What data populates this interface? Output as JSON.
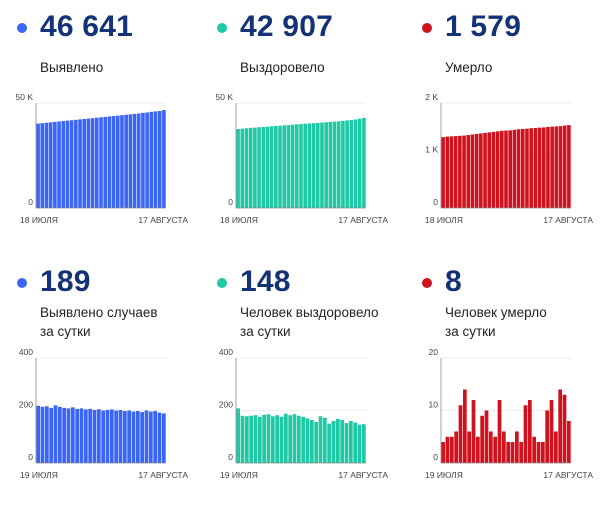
{
  "panels": [
    {
      "id": "p1",
      "color": "#3b66f5",
      "value": "46 641",
      "label": [
        "Выявлено"
      ],
      "chart": {
        "ylim": [
          0,
          50000
        ],
        "yticks": [
          {
            "v": 0,
            "t": "0"
          },
          {
            "v": 50000,
            "t": "50 K"
          }
        ],
        "xlabels": [
          "18 ИЮЛЯ",
          "17 АВГУСТА"
        ]
      }
    },
    {
      "id": "p2",
      "color": "#20c9a6",
      "value": "42 907",
      "label": [
        "Выздоровело"
      ],
      "chart": {
        "ylim": [
          0,
          50000
        ],
        "yticks": [
          {
            "v": 0,
            "t": "0"
          },
          {
            "v": 50000,
            "t": "50 K"
          }
        ],
        "xlabels": [
          "18 ИЮЛЯ",
          "17 АВГУСТА"
        ]
      }
    },
    {
      "id": "p3",
      "color": "#d0121e",
      "value": "1 579",
      "label": [
        "Умерло"
      ],
      "chart": {
        "ylim": [
          0,
          2000
        ],
        "yticks": [
          {
            "v": 0,
            "t": "0"
          },
          {
            "v": 1000,
            "t": "1 K"
          },
          {
            "v": 2000,
            "t": "2 K"
          }
        ],
        "xlabels": [
          "18 ИЮЛЯ",
          "17 АВГУСТА"
        ]
      }
    },
    {
      "id": "p4",
      "color": "#3b66f5",
      "value": "189",
      "label": [
        "Выявлено случаев",
        "за сутки"
      ],
      "chart": {
        "ylim": [
          0,
          400
        ],
        "yticks": [
          {
            "v": 0,
            "t": "0"
          },
          {
            "v": 200,
            "t": "200"
          },
          {
            "v": 400,
            "t": "400"
          }
        ],
        "xlabels": [
          "19 ИЮЛЯ",
          "17 АВГУСТА"
        ]
      }
    },
    {
      "id": "p5",
      "color": "#20c9a6",
      "value": "148",
      "label": [
        "Человек выздоровело",
        "за сутки"
      ],
      "chart": {
        "ylim": [
          0,
          400
        ],
        "yticks": [
          {
            "v": 0,
            "t": "0"
          },
          {
            "v": 200,
            "t": "200"
          },
          {
            "v": 400,
            "t": "400"
          }
        ],
        "xlabels": [
          "19 ИЮЛЯ",
          "17 АВГУСТА"
        ]
      }
    },
    {
      "id": "p6",
      "color": "#d0121e",
      "value": "8",
      "label": [
        "Человек умерло",
        "за сутки"
      ],
      "chart": {
        "ylim": [
          0,
          20
        ],
        "yticks": [
          {
            "v": 0,
            "t": "0"
          },
          {
            "v": 10,
            "t": "10"
          },
          {
            "v": 20,
            "t": "20"
          }
        ],
        "xlabels": [
          "19 ИЮЛЯ",
          "17 АВГУСТА"
        ]
      }
    }
  ],
  "chart_data": [
    {
      "type": "bar",
      "title": "Выявлено",
      "x_start": "18 ИЮЛЯ",
      "x_end": "17 АВГУСТА",
      "ylim": [
        0,
        50000
      ],
      "values": [
        40200,
        40400,
        40600,
        40800,
        41000,
        41200,
        41400,
        41600,
        41800,
        42000,
        42200,
        42400,
        42600,
        42800,
        43000,
        43200,
        43400,
        43600,
        43800,
        44000,
        44200,
        44400,
        44600,
        44800,
        45000,
        45300,
        45500,
        45800,
        46000,
        46200,
        46641
      ]
    },
    {
      "type": "bar",
      "title": "Выздоровело",
      "x_start": "18 ИЮЛЯ",
      "x_end": "17 АВГУСТА",
      "ylim": [
        0,
        50000
      ],
      "values": [
        37600,
        37800,
        38000,
        38150,
        38300,
        38450,
        38600,
        38750,
        38900,
        39050,
        39200,
        39350,
        39500,
        39650,
        39800,
        39950,
        40100,
        40250,
        40400,
        40550,
        40700,
        40850,
        41000,
        41150,
        41300,
        41500,
        41700,
        41900,
        42150,
        42550,
        42907
      ]
    },
    {
      "type": "bar",
      "title": "Умерло",
      "x_start": "18 ИЮЛЯ",
      "x_end": "17 АВГУСТА",
      "ylim": [
        0,
        2000
      ],
      "values": [
        1350,
        1360,
        1365,
        1370,
        1375,
        1380,
        1390,
        1400,
        1410,
        1420,
        1430,
        1440,
        1450,
        1460,
        1470,
        1475,
        1480,
        1490,
        1500,
        1505,
        1510,
        1520,
        1525,
        1530,
        1535,
        1545,
        1550,
        1555,
        1560,
        1571,
        1579
      ]
    },
    {
      "type": "bar",
      "title": "Выявлено случаев за сутки",
      "x_start": "19 ИЮЛЯ",
      "x_end": "17 АВГУСТА",
      "ylim": [
        0,
        400
      ],
      "values": [
        218,
        214,
        216,
        210,
        220,
        214,
        210,
        208,
        212,
        206,
        208,
        204,
        206,
        202,
        205,
        200,
        202,
        204,
        200,
        202,
        198,
        200,
        196,
        198,
        194,
        200,
        196,
        198,
        192,
        189
      ]
    },
    {
      "type": "bar",
      "title": "Человек выздоровело за сутки",
      "x_start": "19 ИЮЛЯ",
      "x_end": "17 АВГУСТА",
      "ylim": [
        0,
        400
      ],
      "values": [
        208,
        180,
        178,
        180,
        182,
        176,
        184,
        186,
        178,
        182,
        176,
        188,
        182,
        186,
        180,
        176,
        170,
        164,
        156,
        178,
        172,
        150,
        160,
        168,
        164,
        152,
        160,
        154,
        146,
        148
      ]
    },
    {
      "type": "bar",
      "title": "Человек умерло за сутки",
      "x_start": "19 ИЮЛЯ",
      "x_end": "17 АВГУСТА",
      "ylim": [
        0,
        20
      ],
      "values": [
        4,
        5,
        5,
        6,
        11,
        14,
        6,
        12,
        5,
        9,
        10,
        6,
        5,
        12,
        6,
        4,
        4,
        6,
        4,
        11,
        12,
        5,
        4,
        4,
        10,
        12,
        6,
        14,
        13,
        8
      ]
    }
  ]
}
